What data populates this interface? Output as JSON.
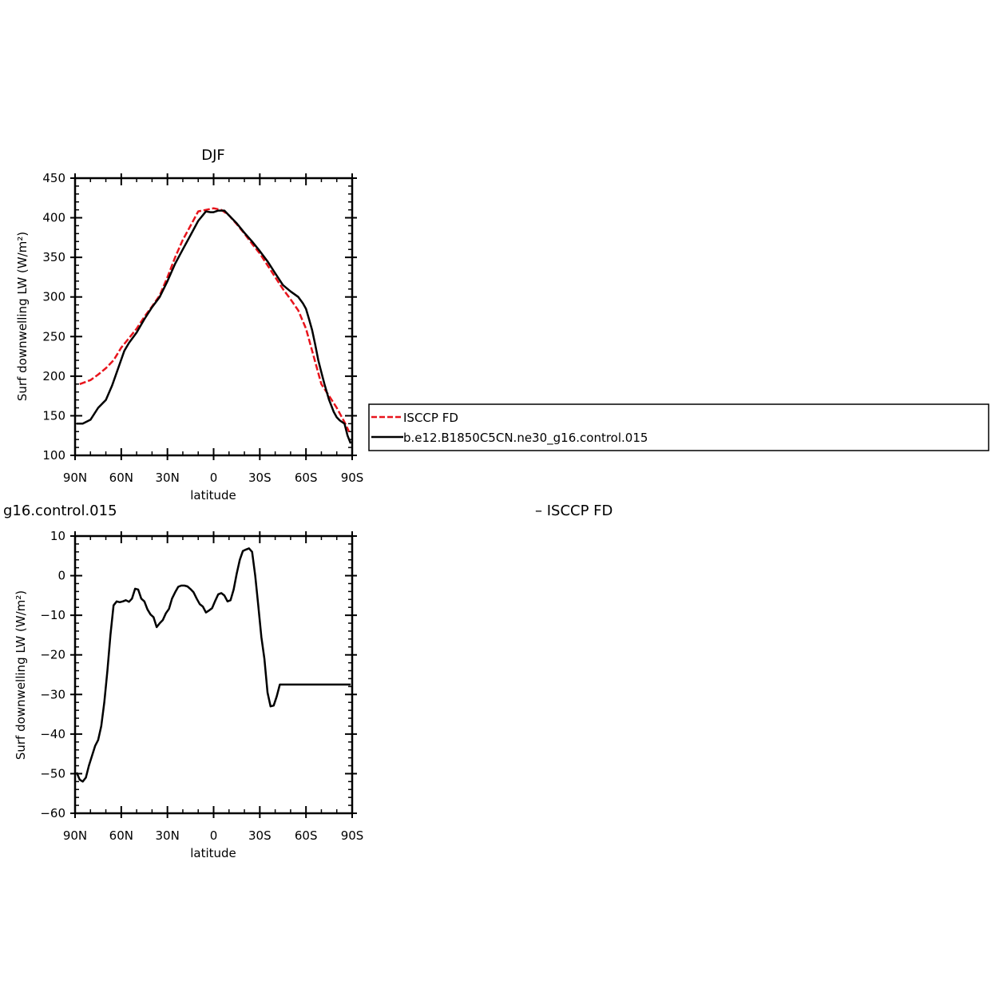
{
  "chart_data": [
    {
      "type": "line",
      "title": "DJF",
      "xlabel": "latitude",
      "ylabel": "Surf downwelling LW (W/m²)",
      "xlim": [
        90,
        -90
      ],
      "ylim": [
        100,
        450
      ],
      "yticks": [
        100,
        150,
        200,
        250,
        300,
        350,
        400,
        450
      ],
      "xticks": [
        {
          "value": 90,
          "label": "90N"
        },
        {
          "value": 60,
          "label": "60N"
        },
        {
          "value": 30,
          "label": "30N"
        },
        {
          "value": 0,
          "label": "0"
        },
        {
          "value": -30,
          "label": "30S"
        },
        {
          "value": -60,
          "label": "60S"
        },
        {
          "value": -90,
          "label": "90S"
        }
      ],
      "legend": {
        "placement": "right",
        "entries": [
          "ISCCP FD",
          "b.e12.B1850C5CN.ne30_g16.control.015"
        ]
      },
      "series": [
        {
          "name": "ISCCP FD",
          "color": "#e8141c",
          "dash": "dashed",
          "x": [
            87,
            80,
            75,
            70,
            65,
            60,
            55,
            50,
            45,
            40,
            35,
            30,
            25,
            20,
            15,
            10,
            5,
            0,
            -5,
            -10,
            -15,
            -20,
            -25,
            -30,
            -35,
            -40,
            -45,
            -50,
            -55,
            -60,
            -65,
            -70,
            -75,
            -80,
            -85,
            -88
          ],
          "values": [
            190,
            195,
            202,
            210,
            220,
            236,
            248,
            260,
            275,
            288,
            302,
            325,
            350,
            372,
            390,
            408,
            410,
            412,
            410,
            403,
            392,
            380,
            367,
            355,
            340,
            325,
            310,
            297,
            283,
            260,
            225,
            190,
            175,
            160,
            142,
            130
          ]
        },
        {
          "name": "b.e12.B1850C5CN.ne30_g16.control.015",
          "color": "#000000",
          "dash": "solid",
          "x": [
            89,
            85,
            80,
            75,
            70,
            66,
            62,
            58,
            55,
            50,
            45,
            40,
            35,
            30,
            25,
            20,
            15,
            10,
            5,
            2,
            0,
            -3,
            -7,
            -10,
            -15,
            -20,
            -25,
            -30,
            -35,
            -40,
            -45,
            -50,
            -55,
            -58,
            -60,
            -62,
            -64,
            -66,
            -68,
            -70,
            -72,
            -75,
            -78,
            -80,
            -82,
            -85,
            -87,
            -89
          ],
          "values": [
            140,
            140,
            145,
            160,
            170,
            188,
            210,
            232,
            242,
            255,
            272,
            287,
            300,
            320,
            342,
            360,
            378,
            396,
            408,
            407,
            407,
            409,
            409,
            403,
            393,
            381,
            370,
            358,
            345,
            330,
            315,
            307,
            300,
            292,
            285,
            272,
            258,
            240,
            220,
            205,
            190,
            170,
            155,
            148,
            144,
            140,
            125,
            115
          ]
        }
      ]
    },
    {
      "type": "line",
      "title": "g16.control.015",
      "xlabel": "latitude",
      "ylabel": "Surf downwelling LW (W/m²)",
      "xlim": [
        90,
        -90
      ],
      "ylim": [
        -60,
        10
      ],
      "yticks": [
        -60,
        -50,
        -40,
        -30,
        -20,
        -10,
        0,
        10
      ],
      "xticks": [
        {
          "value": 90,
          "label": "90N"
        },
        {
          "value": 60,
          "label": "60N"
        },
        {
          "value": 30,
          "label": "30N"
        },
        {
          "value": 0,
          "label": "0"
        },
        {
          "value": -30,
          "label": "30S"
        },
        {
          "value": -60,
          "label": "60S"
        },
        {
          "value": -90,
          "label": "90S"
        }
      ],
      "series": [
        {
          "color": "#000000",
          "dash": "solid",
          "x": [
            89,
            87,
            85,
            83,
            81,
            79,
            77,
            75,
            73,
            71,
            69,
            67,
            65,
            63,
            61,
            59,
            57,
            55,
            53,
            51,
            49,
            47,
            45,
            43,
            41,
            39,
            37,
            35,
            33,
            31,
            29,
            27,
            25,
            23,
            21,
            19,
            17,
            15,
            13,
            11,
            9,
            7,
            5,
            3,
            1,
            -1,
            -3,
            -5,
            -7,
            -9,
            -11,
            -13,
            -15,
            -17,
            -19,
            -21,
            -23,
            -25,
            -27,
            -29,
            -31,
            -33,
            -35,
            -37,
            -39,
            -41,
            -43,
            -45,
            -47,
            -49,
            -51,
            -53,
            -55,
            -57,
            -59,
            -61,
            -63,
            -65,
            -67,
            -69,
            -71,
            -73,
            -75,
            -77,
            -79,
            -81,
            -83,
            -85,
            -87,
            -89
          ],
          "values": [
            -49.7,
            -51.5,
            -52,
            -51,
            -48,
            -45.5,
            -43,
            -41.5,
            -38,
            -32,
            -24,
            -15,
            -7.5,
            -6.5,
            -6.7,
            -6.5,
            -6.2,
            -6.6,
            -5.8,
            -3.3,
            -3.5,
            -5.8,
            -6.5,
            -8.5,
            -9.8,
            -10.5,
            -13,
            -12,
            -11.2,
            -9.5,
            -8.4,
            -5.8,
            -4.2,
            -2.8,
            -2.5,
            -2.5,
            -2.7,
            -3.4,
            -4.2,
            -5.8,
            -7.2,
            -7.8,
            -9.3,
            -8.8,
            -8.2,
            -6.4,
            -4.7,
            -4.4,
            -5,
            -6.5,
            -6.2,
            -3.5,
            0.5,
            4,
            6.2,
            6.6,
            6.9,
            6,
            0,
            -7.5,
            -15.5,
            -21,
            -29.5,
            -33,
            -32.8,
            -30.5,
            -27.5,
            -27.5,
            -27.5,
            -27.5,
            -27.5,
            -27.5,
            -27.5,
            -27.5,
            -27.5,
            -27.5,
            -27.5,
            -27.5,
            -27.5,
            -27.5,
            -27.5,
            -27.5,
            -27.5,
            -27.5,
            -27.5,
            -27.5,
            -27.5,
            -27.5,
            -27.5,
            -27.5
          ]
        }
      ]
    }
  ],
  "fragment_title": "– ISCCP FD"
}
